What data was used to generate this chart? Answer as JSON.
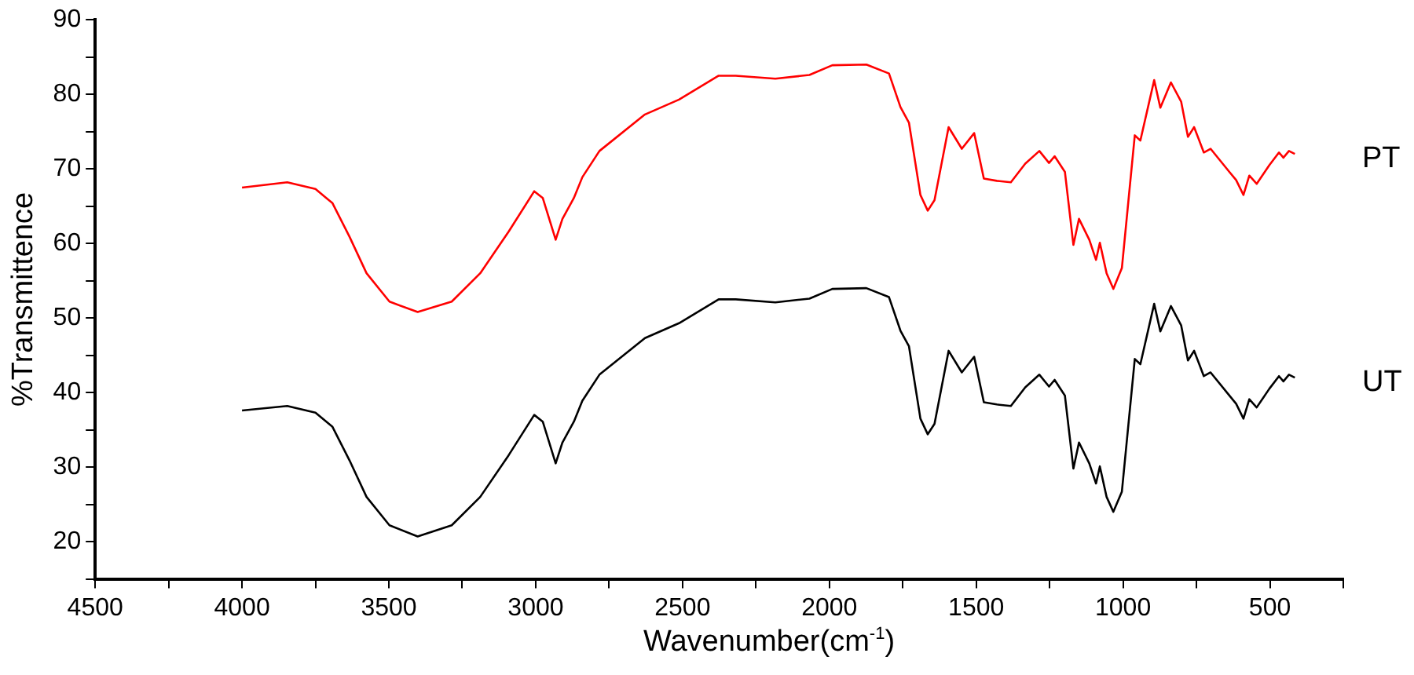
{
  "chart_data": {
    "type": "line",
    "xlabel": "Wavenumber(cm$^{-1}$)",
    "ylabel": "%Transmittence",
    "xlim": [
      4500,
      250
    ],
    "xticks": [
      4500,
      {
        "value": 4250,
        "label": null
      },
      4000,
      {
        "value": 3750,
        "label": null
      },
      3500,
      {
        "value": 3250,
        "label": null
      },
      3000,
      {
        "value": 2750,
        "label": null
      },
      2500,
      {
        "value": 2250,
        "label": null
      },
      2000,
      {
        "value": 1750,
        "label": null
      },
      1500,
      {
        "value": 1250,
        "label": null
      },
      1000,
      {
        "value": 750,
        "label": null
      },
      500,
      {
        "value": 250,
        "label": null
      }
    ],
    "ylim": [
      15,
      90
    ],
    "yticks": [
      {
        "value": 15,
        "label": null
      },
      20,
      {
        "value": 25,
        "label": null
      },
      30,
      {
        "value": 35,
        "label": null
      },
      40,
      {
        "value": 45,
        "label": null
      },
      50,
      {
        "value": 55,
        "label": null
      },
      60,
      {
        "value": 65,
        "label": null
      },
      70,
      {
        "value": 75,
        "label": null
      },
      80,
      {
        "value": 85,
        "label": null
      },
      90
    ],
    "grid": false,
    "legend": false,
    "marker": "none",
    "line_style": "solid",
    "x": [
      4000,
      3846,
      3750,
      3692,
      3634,
      3576,
      3498,
      3402,
      3286,
      3189,
      3092,
      3005,
      2976,
      2932,
      2909,
      2870,
      2841,
      2783,
      2628,
      2512,
      2377,
      2319,
      2184,
      2068,
      1990,
      1874,
      1797,
      1758,
      1729,
      1690,
      1665,
      1642,
      1594,
      1549,
      1507,
      1474,
      1430,
      1382,
      1333,
      1285,
      1252,
      1233,
      1198,
      1169,
      1150,
      1115,
      1092,
      1079,
      1056,
      1033,
      1004,
      960,
      941,
      894,
      873,
      837,
      802,
      779,
      758,
      725,
      702,
      638,
      615,
      590,
      570,
      545,
      502,
      469,
      454,
      435,
      415
    ],
    "series": [
      {
        "name": "PT",
        "color": "#ff0000",
        "values": [
          67.5,
          68.2,
          67.3,
          65.4,
          60.9,
          56.0,
          52.2,
          50.8,
          52.2,
          56.0,
          61.6,
          67.0,
          66.1,
          60.5,
          63.3,
          66.1,
          68.9,
          72.4,
          77.3,
          79.3,
          82.5,
          82.5,
          82.1,
          82.6,
          83.9,
          84.0,
          82.8,
          78.3,
          76.2,
          66.5,
          64.4,
          65.8,
          75.6,
          72.7,
          74.8,
          68.7,
          68.4,
          68.2,
          70.7,
          72.4,
          70.8,
          71.7,
          69.6,
          59.8,
          63.3,
          60.5,
          57.8,
          60.1,
          56.0,
          53.9,
          56.7,
          74.5,
          73.8,
          81.9,
          78.2,
          81.6,
          79.0,
          74.3,
          75.6,
          72.2,
          72.7,
          69.6,
          68.5,
          66.5,
          69.1,
          68.0,
          70.5,
          72.2,
          71.5,
          72.4,
          72.0
        ]
      },
      {
        "name": "UT",
        "color": "#000000",
        "values": [
          37.6,
          38.2,
          37.3,
          35.4,
          30.9,
          26.0,
          22.2,
          20.7,
          22.2,
          26.0,
          31.6,
          37.0,
          36.1,
          30.5,
          33.3,
          36.1,
          38.9,
          42.4,
          47.3,
          49.3,
          52.5,
          52.5,
          52.1,
          52.6,
          53.9,
          54.0,
          52.8,
          48.3,
          46.2,
          36.5,
          34.4,
          35.8,
          45.6,
          42.7,
          44.8,
          38.7,
          38.4,
          38.2,
          40.7,
          42.4,
          40.8,
          41.7,
          39.6,
          29.8,
          33.3,
          30.5,
          27.8,
          30.1,
          26.0,
          24.0,
          26.7,
          44.5,
          43.8,
          51.9,
          48.2,
          51.6,
          49.0,
          44.3,
          45.6,
          42.2,
          42.7,
          39.6,
          38.5,
          36.5,
          39.1,
          38.0,
          40.5,
          42.2,
          41.5,
          42.4,
          42.0
        ]
      }
    ]
  }
}
